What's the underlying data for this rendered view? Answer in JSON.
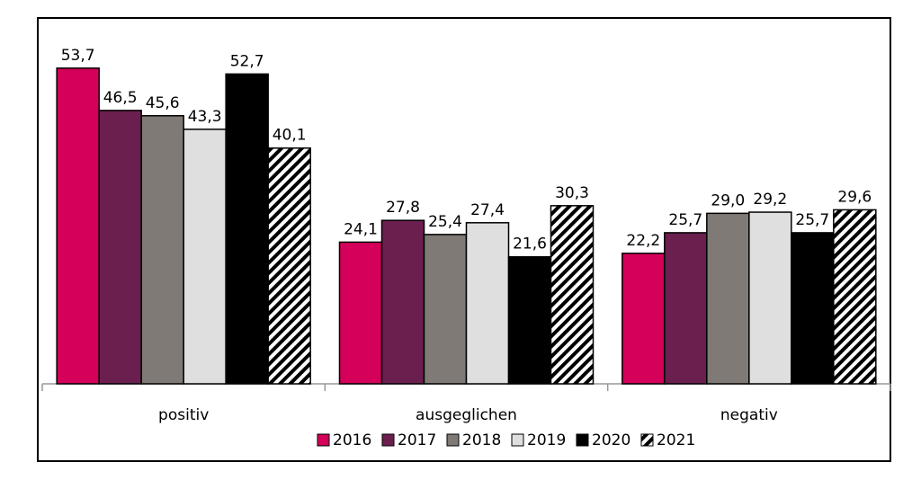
{
  "chart_data": {
    "type": "bar",
    "categories": [
      "positiv",
      "ausgeglichen",
      "negativ"
    ],
    "series": [
      {
        "name": "2016",
        "color": "#d4005a",
        "values": [
          53.7,
          24.1,
          22.2
        ],
        "value_labels": [
          "53,7",
          "24,1",
          "22,2"
        ]
      },
      {
        "name": "2017",
        "color": "#6b1f4f",
        "values": [
          46.5,
          27.8,
          25.7
        ],
        "value_labels": [
          "46,5",
          "27,8",
          "25,7"
        ]
      },
      {
        "name": "2018",
        "color": "#7f7a76",
        "values": [
          45.6,
          25.4,
          29.0
        ],
        "value_labels": [
          "45,6",
          "25,4",
          "29,0"
        ]
      },
      {
        "name": "2019",
        "color": "#e0dfe0",
        "values": [
          43.3,
          27.4,
          29.2
        ],
        "value_labels": [
          "43,3",
          "27,4",
          "29,2"
        ]
      },
      {
        "name": "2020",
        "color": "#000000",
        "values": [
          52.7,
          21.6,
          25.7
        ],
        "value_labels": [
          "52,7",
          "21,6",
          "25,7"
        ]
      },
      {
        "name": "2021",
        "color": "#000000",
        "pattern": "diagonal-stripes",
        "values": [
          40.1,
          30.3,
          29.6
        ],
        "value_labels": [
          "40,1",
          "30,3",
          "29,6"
        ]
      }
    ]
  }
}
